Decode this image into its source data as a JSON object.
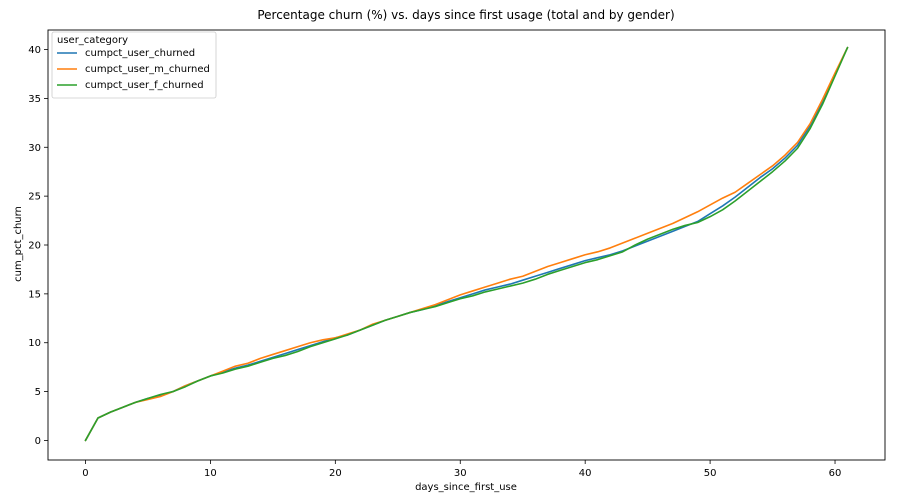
{
  "chart_data": {
    "type": "line",
    "title": "Percentage churn (%) vs. days since first usage (total and by gender)",
    "xlabel": "days_since_first_use",
    "ylabel": "cum_pct_churn",
    "xlim": [
      -3,
      64
    ],
    "ylim": [
      -2,
      42
    ],
    "xticks": [
      0,
      10,
      20,
      30,
      40,
      50,
      60
    ],
    "yticks": [
      0,
      5,
      10,
      15,
      20,
      25,
      30,
      35,
      40
    ],
    "grid": false,
    "legend_title": "user_category",
    "legend_position": "upper-left",
    "series": [
      {
        "name": "cumpct_user_churned",
        "color": "#1f77b4",
        "x": [
          0,
          1,
          2,
          3,
          4,
          5,
          6,
          7,
          8,
          9,
          10,
          11,
          12,
          13,
          14,
          15,
          16,
          17,
          18,
          19,
          20,
          21,
          22,
          23,
          24,
          25,
          26,
          27,
          28,
          29,
          30,
          31,
          32,
          33,
          34,
          35,
          36,
          37,
          38,
          39,
          40,
          41,
          42,
          43,
          44,
          45,
          46,
          47,
          48,
          49,
          50,
          51,
          52,
          53,
          54,
          55,
          56,
          57,
          58,
          59,
          60,
          61
        ],
        "y": [
          0,
          2.3,
          2.9,
          3.4,
          3.9,
          4.3,
          4.6,
          5.0,
          5.6,
          6.1,
          6.6,
          7.0,
          7.4,
          7.7,
          8.1,
          8.5,
          8.9,
          9.3,
          9.7,
          10.1,
          10.5,
          10.8,
          11.3,
          11.8,
          12.3,
          12.7,
          13.1,
          13.4,
          13.8,
          14.2,
          14.6,
          15.0,
          15.4,
          15.7,
          16.0,
          16.4,
          16.8,
          17.2,
          17.6,
          18.0,
          18.4,
          18.7,
          19.0,
          19.4,
          19.9,
          20.4,
          20.9,
          21.4,
          21.9,
          22.4,
          23.2,
          24.0,
          24.9,
          25.9,
          26.9,
          27.8,
          28.9,
          30.2,
          32.2,
          34.7,
          37.5,
          40.2
        ]
      },
      {
        "name": "cumpct_user_m_churned",
        "color": "#ff7f0e",
        "x": [
          0,
          1,
          2,
          3,
          4,
          5,
          6,
          7,
          8,
          9,
          10,
          11,
          12,
          13,
          14,
          15,
          16,
          17,
          18,
          19,
          20,
          21,
          22,
          23,
          24,
          25,
          26,
          27,
          28,
          29,
          30,
          31,
          32,
          33,
          34,
          35,
          36,
          37,
          38,
          39,
          40,
          41,
          42,
          43,
          44,
          45,
          46,
          47,
          48,
          49,
          50,
          51,
          52,
          53,
          54,
          55,
          56,
          57,
          58,
          59,
          60,
          61
        ],
        "y": [
          0,
          2.3,
          2.9,
          3.4,
          3.9,
          4.2,
          4.5,
          5.0,
          5.6,
          6.1,
          6.6,
          7.1,
          7.6,
          7.9,
          8.4,
          8.8,
          9.2,
          9.6,
          10.0,
          10.3,
          10.5,
          10.9,
          11.3,
          11.9,
          12.3,
          12.7,
          13.1,
          13.5,
          13.9,
          14.4,
          14.9,
          15.3,
          15.7,
          16.1,
          16.5,
          16.8,
          17.3,
          17.8,
          18.2,
          18.6,
          19.0,
          19.3,
          19.7,
          20.2,
          20.7,
          21.2,
          21.7,
          22.2,
          22.8,
          23.4,
          24.1,
          24.8,
          25.4,
          26.3,
          27.2,
          28.1,
          29.2,
          30.5,
          32.4,
          34.9,
          37.6,
          40.2
        ]
      },
      {
        "name": "cumpct_user_f_churned",
        "color": "#2ca02c",
        "x": [
          0,
          1,
          2,
          3,
          4,
          5,
          6,
          7,
          8,
          9,
          10,
          11,
          12,
          13,
          14,
          15,
          16,
          17,
          18,
          19,
          20,
          21,
          22,
          23,
          24,
          25,
          26,
          27,
          28,
          29,
          30,
          31,
          32,
          33,
          34,
          35,
          36,
          37,
          38,
          39,
          40,
          41,
          42,
          43,
          44,
          45,
          46,
          47,
          48,
          49,
          50,
          51,
          52,
          53,
          54,
          55,
          56,
          57,
          58,
          59,
          60,
          61
        ],
        "y": [
          0,
          2.3,
          2.9,
          3.4,
          3.9,
          4.3,
          4.7,
          5.0,
          5.5,
          6.1,
          6.6,
          6.9,
          7.3,
          7.6,
          8.0,
          8.4,
          8.7,
          9.1,
          9.6,
          10.0,
          10.4,
          10.8,
          11.3,
          11.8,
          12.3,
          12.7,
          13.1,
          13.4,
          13.7,
          14.1,
          14.5,
          14.8,
          15.2,
          15.5,
          15.8,
          16.1,
          16.5,
          17.0,
          17.4,
          17.8,
          18.2,
          18.5,
          18.9,
          19.3,
          20.0,
          20.6,
          21.1,
          21.6,
          22.0,
          22.3,
          22.9,
          23.6,
          24.5,
          25.5,
          26.5,
          27.5,
          28.6,
          29.9,
          31.9,
          34.4,
          37.3,
          40.2
        ]
      }
    ]
  }
}
